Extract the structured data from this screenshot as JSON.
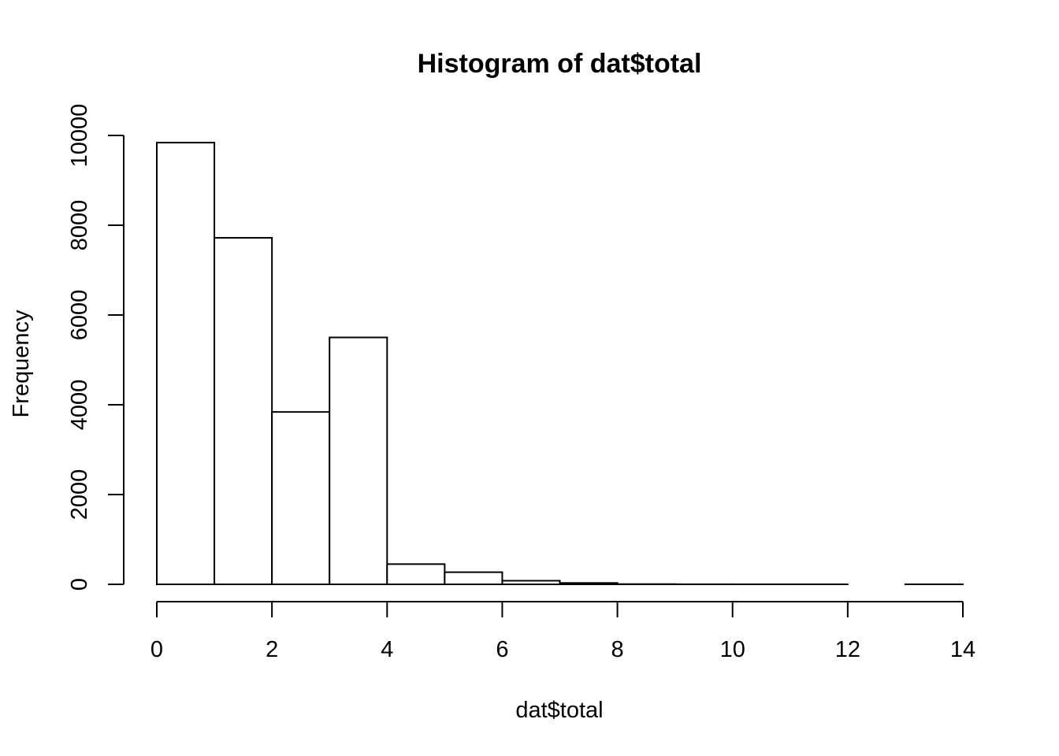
{
  "chart_data": {
    "type": "bar",
    "title": "Histogram of dat$total",
    "xlabel": "dat$total",
    "ylabel": "Frequency",
    "bins": [
      {
        "start": 0,
        "end": 1,
        "count": 9840
      },
      {
        "start": 1,
        "end": 2,
        "count": 7720
      },
      {
        "start": 2,
        "end": 3,
        "count": 3840
      },
      {
        "start": 3,
        "end": 4,
        "count": 5500
      },
      {
        "start": 4,
        "end": 5,
        "count": 450
      },
      {
        "start": 5,
        "end": 6,
        "count": 270
      },
      {
        "start": 6,
        "end": 7,
        "count": 80
      },
      {
        "start": 7,
        "end": 8,
        "count": 30
      },
      {
        "start": 8,
        "end": 9,
        "count": 5
      },
      {
        "start": 9,
        "end": 10,
        "count": 2
      },
      {
        "start": 10,
        "end": 11,
        "count": 1
      },
      {
        "start": 11,
        "end": 12,
        "count": 1
      },
      {
        "start": 12,
        "end": 13,
        "count": 0
      },
      {
        "start": 13,
        "end": 14,
        "count": 1
      }
    ],
    "xlim": [
      0,
      14
    ],
    "ylim": [
      0,
      10000
    ],
    "x_ticks": [
      "0",
      "2",
      "4",
      "6",
      "8",
      "10",
      "12",
      "14"
    ],
    "y_ticks": [
      "0",
      "2000",
      "4000",
      "6000",
      "8000",
      "10000"
    ],
    "grid": false,
    "legend": "none"
  }
}
